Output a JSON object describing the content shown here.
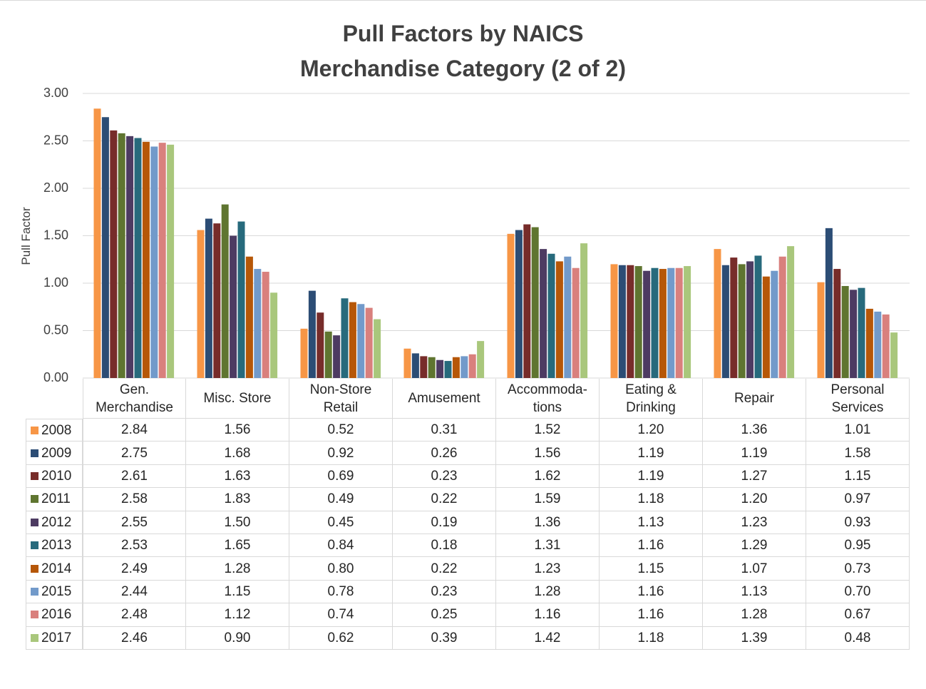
{
  "chart_data": {
    "type": "bar",
    "title": "Pull Factors by NAICS\nMerchandise Category (2 of 2)",
    "y_label": "Pull Factor",
    "categories": [
      "Gen.\nMerchandise",
      "Misc. Store",
      "Non-Store\nRetail",
      "Amusement",
      "Accommoda-\ntions",
      "Eating &\nDrinking",
      "Repair",
      "Personal\nServices"
    ],
    "ylim": [
      0,
      3
    ],
    "yticks": [
      {
        "value": 0,
        "label": "0.00"
      },
      {
        "value": 0.5,
        "label": "0.50"
      },
      {
        "value": 1,
        "label": "1.00"
      },
      {
        "value": 1.5,
        "label": "1.50"
      },
      {
        "value": 2,
        "label": "2.00"
      },
      {
        "value": 2.5,
        "label": "2.50"
      },
      {
        "value": 3,
        "label": "3.00"
      }
    ],
    "grid": true,
    "series": [
      {
        "name": "2008",
        "color": "#f79646",
        "values": [
          2.84,
          1.56,
          0.52,
          0.31,
          1.52,
          1.2,
          1.36,
          1.01
        ],
        "value_labels": [
          "2.84",
          "1.56",
          "0.52",
          "0.31",
          "1.52",
          "1.20",
          "1.36",
          "1.01"
        ]
      },
      {
        "name": "2009",
        "color": "#2c4d75",
        "values": [
          2.75,
          1.68,
          0.92,
          0.26,
          1.56,
          1.19,
          1.19,
          1.58
        ],
        "value_labels": [
          "2.75",
          "1.68",
          "0.92",
          "0.26",
          "1.56",
          "1.19",
          "1.19",
          "1.58"
        ]
      },
      {
        "name": "2010",
        "color": "#772c2a",
        "values": [
          2.61,
          1.63,
          0.69,
          0.23,
          1.62,
          1.19,
          1.27,
          1.15
        ],
        "value_labels": [
          "2.61",
          "1.63",
          "0.69",
          "0.23",
          "1.62",
          "1.19",
          "1.27",
          "1.15"
        ]
      },
      {
        "name": "2011",
        "color": "#5f7530",
        "values": [
          2.58,
          1.83,
          0.49,
          0.22,
          1.59,
          1.18,
          1.2,
          0.97
        ],
        "value_labels": [
          "2.58",
          "1.83",
          "0.49",
          "0.22",
          "1.59",
          "1.18",
          "1.20",
          "0.97"
        ]
      },
      {
        "name": "2012",
        "color": "#4d3b62",
        "values": [
          2.55,
          1.5,
          0.45,
          0.19,
          1.36,
          1.13,
          1.23,
          0.93
        ],
        "value_labels": [
          "2.55",
          "1.50",
          "0.45",
          "0.19",
          "1.36",
          "1.13",
          "1.23",
          "0.93"
        ]
      },
      {
        "name": "2013",
        "color": "#276a7c",
        "values": [
          2.53,
          1.65,
          0.84,
          0.18,
          1.31,
          1.16,
          1.29,
          0.95
        ],
        "value_labels": [
          "2.53",
          "1.65",
          "0.84",
          "0.18",
          "1.31",
          "1.16",
          "1.29",
          "0.95"
        ]
      },
      {
        "name": "2014",
        "color": "#b65708",
        "values": [
          2.49,
          1.28,
          0.8,
          0.22,
          1.23,
          1.15,
          1.07,
          0.73
        ],
        "value_labels": [
          "2.49",
          "1.28",
          "0.80",
          "0.22",
          "1.23",
          "1.15",
          "1.07",
          "0.73"
        ]
      },
      {
        "name": "2015",
        "color": "#729aca",
        "values": [
          2.44,
          1.15,
          0.78,
          0.23,
          1.28,
          1.16,
          1.13,
          0.7
        ],
        "value_labels": [
          "2.44",
          "1.15",
          "0.78",
          "0.23",
          "1.28",
          "1.16",
          "1.13",
          "0.70"
        ]
      },
      {
        "name": "2016",
        "color": "#d9807d",
        "values": [
          2.48,
          1.12,
          0.74,
          0.25,
          1.16,
          1.16,
          1.28,
          0.67
        ],
        "value_labels": [
          "2.48",
          "1.12",
          "0.74",
          "0.25",
          "1.16",
          "1.16",
          "1.28",
          "0.67"
        ]
      },
      {
        "name": "2017",
        "color": "#a9c77c",
        "values": [
          2.46,
          0.9,
          0.62,
          0.39,
          1.42,
          1.18,
          1.39,
          0.48
        ],
        "value_labels": [
          "2.46",
          "0.90",
          "0.62",
          "0.39",
          "1.42",
          "1.18",
          "1.39",
          "0.48"
        ]
      }
    ]
  }
}
